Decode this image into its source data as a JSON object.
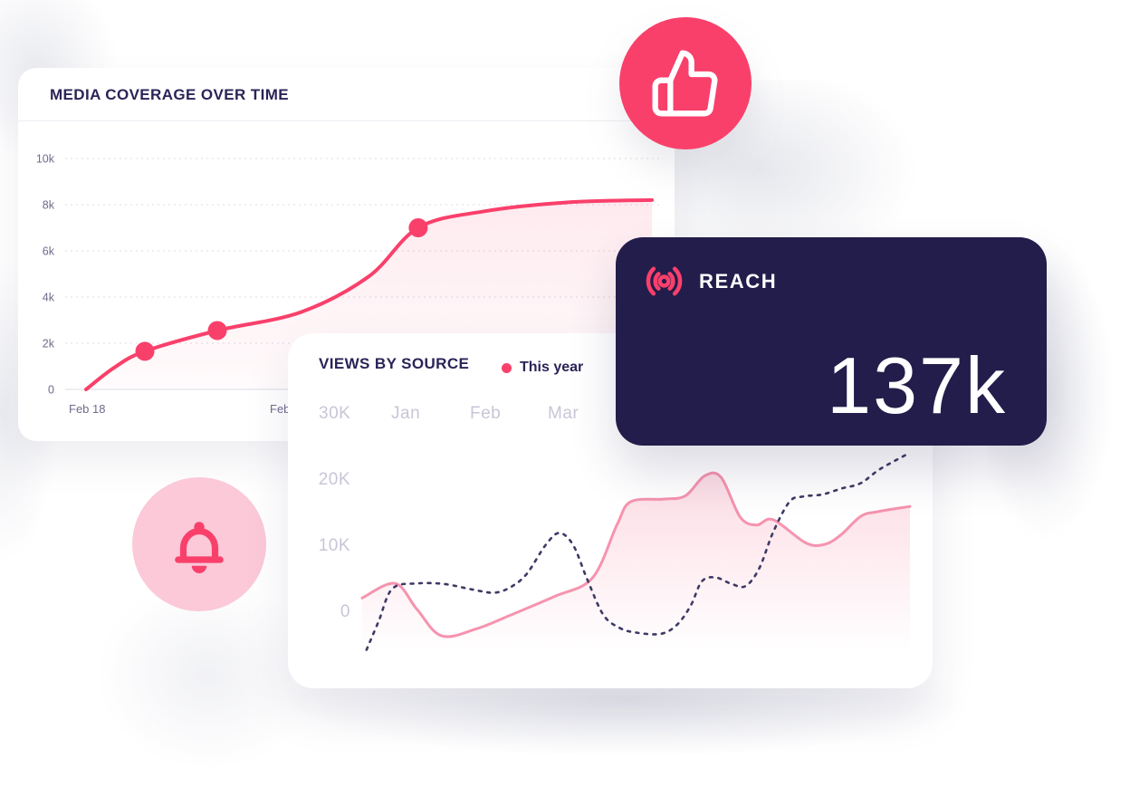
{
  "colors": {
    "accent": "#F9406B",
    "accent_soft_bg": "#FBC9D8",
    "pale_pink_line": "#F693AE",
    "dashed_navy": "#3E3A65",
    "dark_card_bg": "#221D4B",
    "title_navy": "#2A2457",
    "axis_muted": "#6E6C8B",
    "axis_light": "#C7C6D7",
    "divider": "#EEEEF4",
    "card_bg": "#FFFFFF"
  },
  "icons": {
    "thumbs_up": "thumbs-up-icon",
    "bell": "bell-icon",
    "broadcast": "broadcast-icon"
  },
  "reach_card": {
    "label": "REACH",
    "value": "137k"
  },
  "chart_data": [
    {
      "type": "area",
      "title": "MEDIA COVERAGE OVER TIME",
      "xlabel": "",
      "ylabel": "",
      "ylim": [
        0,
        10000
      ],
      "y_ticks": [
        "10k",
        "8k",
        "6k",
        "4k",
        "2k",
        "0"
      ],
      "x_ticks": [
        "Feb 18",
        "Feb"
      ],
      "grid": "dotted-horizontal",
      "legend_position": "none",
      "series": [
        {
          "name": "Media coverage",
          "color": "#F9406B",
          "fill": true,
          "points": [
            [
              0,
              0
            ],
            [
              0.05,
              950
            ],
            [
              0.104,
              1650
            ],
            [
              0.232,
              2550
            ],
            [
              0.38,
              3350
            ],
            [
              0.5,
              4900
            ],
            [
              0.587,
              7000
            ],
            [
              0.7,
              7700
            ],
            [
              0.85,
              8100
            ],
            [
              1,
              8200
            ]
          ],
          "markers": [
            [
              0.104,
              1650
            ],
            [
              0.232,
              2550
            ],
            [
              0.587,
              7000
            ]
          ]
        }
      ]
    },
    {
      "type": "line",
      "title": "VIEWS BY SOURCE",
      "unit": "K",
      "ylim": [
        -7,
        30
      ],
      "y_ticks": [
        "30K",
        "20K",
        "10K",
        "0"
      ],
      "x_ticks": [
        "Jan",
        "Feb",
        "Mar"
      ],
      "grid": "none",
      "legend_position": "top-right",
      "series": [
        {
          "name": "This year",
          "style": "solid",
          "color": "#F693AE",
          "legend_color": "#F9406B",
          "fill": true,
          "points": [
            [
              0,
              2
            ],
            [
              0.06,
              4.2
            ],
            [
              0.1,
              0.3
            ],
            [
              0.145,
              -3.7
            ],
            [
              0.21,
              -2.6
            ],
            [
              0.27,
              -0.6
            ],
            [
              0.35,
              2.2
            ],
            [
              0.42,
              5
            ],
            [
              0.465,
              13
            ],
            [
              0.49,
              16.5
            ],
            [
              0.55,
              16.9
            ],
            [
              0.59,
              17.4
            ],
            [
              0.625,
              20.4
            ],
            [
              0.655,
              20.2
            ],
            [
              0.69,
              14.2
            ],
            [
              0.72,
              13
            ],
            [
              0.75,
              13.8
            ],
            [
              0.81,
              10.3
            ],
            [
              0.845,
              10.1
            ],
            [
              0.875,
              11.6
            ],
            [
              0.91,
              14.3
            ],
            [
              0.94,
              15
            ],
            [
              1,
              15.8
            ]
          ]
        },
        {
          "name": "",
          "style": "dashed",
          "color": "#3E3A65",
          "fill": false,
          "points": [
            [
              0.008,
              -5.8
            ],
            [
              0.03,
              -1.5
            ],
            [
              0.055,
              3.4
            ],
            [
              0.1,
              4.2
            ],
            [
              0.15,
              4.1
            ],
            [
              0.2,
              3.3
            ],
            [
              0.24,
              2.8
            ],
            [
              0.27,
              3.6
            ],
            [
              0.3,
              5.6
            ],
            [
              0.335,
              10
            ],
            [
              0.36,
              11.8
            ],
            [
              0.385,
              10
            ],
            [
              0.41,
              5
            ],
            [
              0.44,
              -0.5
            ],
            [
              0.47,
              -2.5
            ],
            [
              0.5,
              -3.2
            ],
            [
              0.545,
              -3.4
            ],
            [
              0.575,
              -2
            ],
            [
              0.6,
              0.9
            ],
            [
              0.62,
              4.5
            ],
            [
              0.645,
              5.1
            ],
            [
              0.675,
              4.1
            ],
            [
              0.7,
              3.8
            ],
            [
              0.725,
              6.5
            ],
            [
              0.75,
              11.9
            ],
            [
              0.78,
              16.5
            ],
            [
              0.805,
              17.3
            ],
            [
              0.84,
              17.6
            ],
            [
              0.875,
              18.5
            ],
            [
              0.91,
              19.3
            ],
            [
              0.945,
              21.4
            ],
            [
              1,
              23.9
            ]
          ]
        }
      ]
    }
  ]
}
